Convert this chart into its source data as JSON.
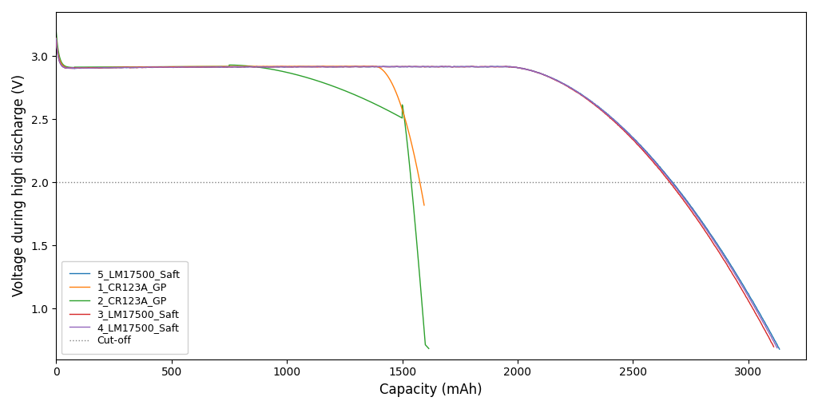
{
  "title": "",
  "xlabel": "Capacity (mAh)",
  "ylabel": "Voltage during high discharge (V)",
  "xlim": [
    0,
    3250
  ],
  "ylim": [
    0.6,
    3.35
  ],
  "cutoff_voltage": 2.0,
  "legend_loc": "lower left",
  "background_color": "#ffffff",
  "figsize": [
    10.24,
    5.12
  ],
  "dpi": 100,
  "series": [
    {
      "name": "5_LM17500_Saft",
      "color": "#1f77b4"
    },
    {
      "name": "1_CR123A_GP",
      "color": "#ff7f0e"
    },
    {
      "name": "2_CR123A_GP",
      "color": "#2ca02c"
    },
    {
      "name": "3_LM17500_Saft",
      "color": "#d62728"
    },
    {
      "name": "4_LM17500_Saft",
      "color": "#9467bd"
    }
  ]
}
